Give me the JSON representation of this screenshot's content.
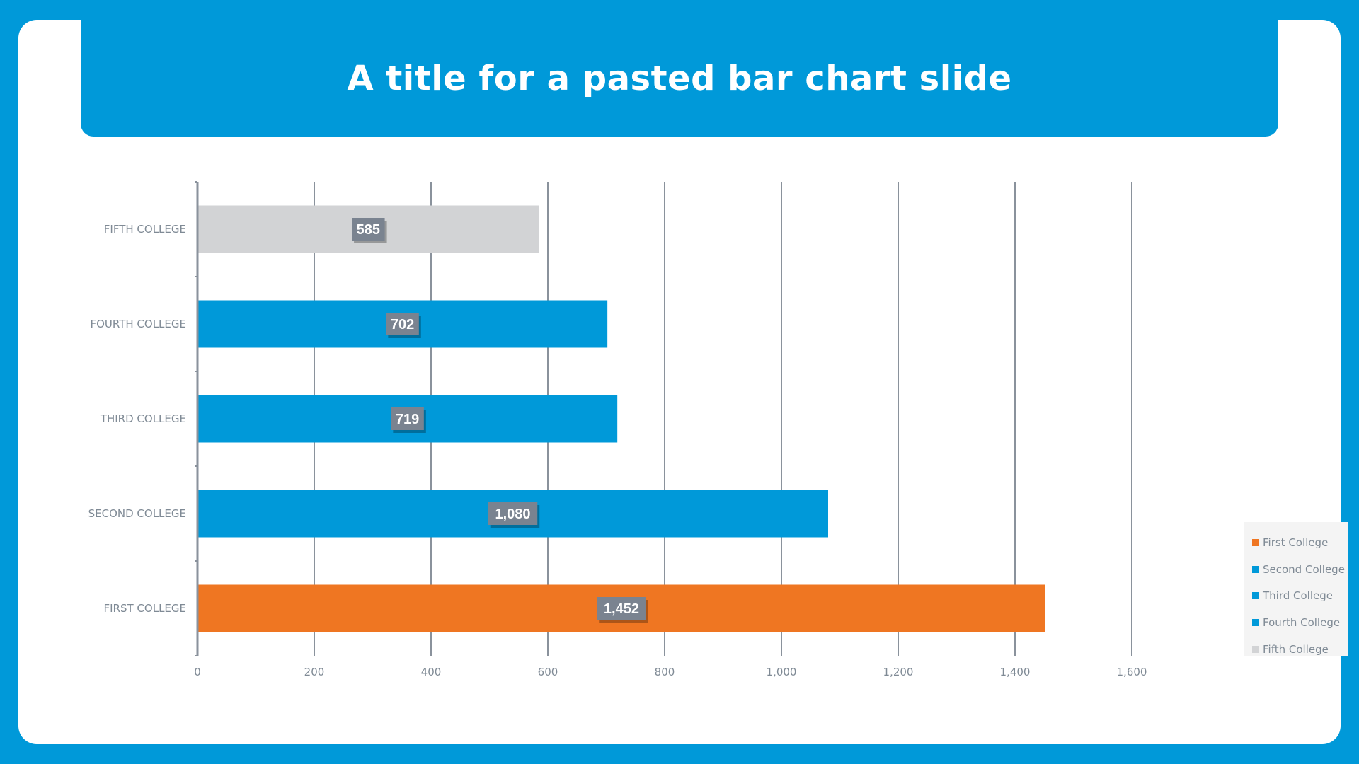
{
  "slide": {
    "title": "A title for a pasted bar chart slide"
  },
  "colors": {
    "background": "#0099d9",
    "title_bar": "#0099d9",
    "first": "#ef7622",
    "blue": "#0099d9",
    "grey": "#d2d3d5",
    "label_box": "#7a8390",
    "gridline": "#8a929c",
    "text": "#7f8a95"
  },
  "chart_data": {
    "type": "bar",
    "orientation": "horizontal",
    "categories": [
      "FIRST COLLEGE",
      "SECOND COLLEGE",
      "THIRD COLLEGE",
      "FOURTH COLLEGE",
      "FIFTH COLLEGE"
    ],
    "values": [
      1452,
      1080,
      719,
      702,
      585
    ],
    "value_labels": [
      "1,452",
      "1,080",
      "719",
      "702",
      "585"
    ],
    "bar_colors": [
      "#ef7622",
      "#0099d9",
      "#0099d9",
      "#0099d9",
      "#d2d3d5"
    ],
    "xlim": [
      0,
      1600
    ],
    "x_ticks": [
      0,
      200,
      400,
      600,
      800,
      1000,
      1200,
      1400,
      1600
    ],
    "x_tick_labels": [
      "0",
      "200",
      "400",
      "600",
      "800",
      "1,000",
      "1,200",
      "1,400",
      "1,600"
    ],
    "grid": "vertical",
    "legend_position": "right",
    "legend": [
      {
        "label": "First College",
        "color": "#ef7622"
      },
      {
        "label": "Second College",
        "color": "#0099d9"
      },
      {
        "label": "Third College",
        "color": "#0099d9"
      },
      {
        "label": "Fourth College",
        "color": "#0099d9"
      },
      {
        "label": "Fifth College",
        "color": "#d2d3d5"
      }
    ]
  }
}
